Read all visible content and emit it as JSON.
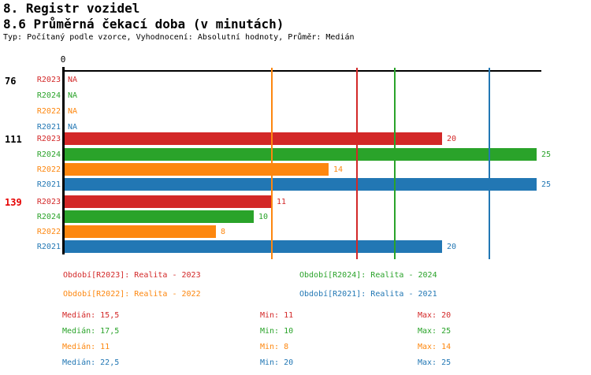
{
  "header": {
    "title1": "8. Registr vozidel",
    "title2": "8.6 Průměrná čekací doba (v minutách)",
    "subtitle": "Typ: Počítaný podle vzorce, Vyhodnocení: Absolutní hodnoty, Průměr: Medián"
  },
  "chart_data": {
    "type": "bar",
    "orientation": "horizontal",
    "title": "8.6 Průměrná čekací doba (v minutách)",
    "axis_zero_label": "0",
    "value_unit": "minuty",
    "na_text": "NA",
    "series_order": [
      "R2023",
      "R2024",
      "R2022",
      "R2021"
    ],
    "series_colors": {
      "R2023": "#d32828",
      "R2024": "#2aa32a",
      "R2022": "#fd870f",
      "R2021": "#2277b4"
    },
    "groups": [
      {
        "label": "76",
        "label_color": "#000000",
        "rows": [
          {
            "series": "R2023",
            "value": "NA"
          },
          {
            "series": "R2024",
            "value": "NA"
          },
          {
            "series": "R2022",
            "value": "NA"
          },
          {
            "series": "R2021",
            "value": "NA"
          }
        ]
      },
      {
        "label": "111",
        "label_color": "#000000",
        "rows": [
          {
            "series": "R2023",
            "value": 20
          },
          {
            "series": "R2024",
            "value": 25
          },
          {
            "series": "R2022",
            "value": 14
          },
          {
            "series": "R2021",
            "value": 25
          }
        ]
      },
      {
        "label": "139",
        "label_color": "#e60000",
        "rows": [
          {
            "series": "R2023",
            "value": 11
          },
          {
            "series": "R2024",
            "value": 10
          },
          {
            "series": "R2022",
            "value": 8
          },
          {
            "series": "R2021",
            "value": 20
          }
        ]
      }
    ],
    "median_lines": [
      {
        "series": "R2022",
        "value": 11,
        "color": "#fd870f"
      },
      {
        "series": "R2023",
        "value": 15.5,
        "color": "#d32828"
      },
      {
        "series": "R2024",
        "value": 17.5,
        "color": "#2aa32a"
      },
      {
        "series": "R2021",
        "value": 22.5,
        "color": "#2277b4"
      }
    ]
  },
  "legend": {
    "items": [
      {
        "text": "Období[R2023]: Realita - 2023",
        "color": "#d32828",
        "row": 0,
        "col": 0
      },
      {
        "text": "Období[R2024]: Realita - 2024",
        "color": "#2aa32a",
        "row": 0,
        "col": 1
      },
      {
        "text": "Období[R2022]: Realita - 2022",
        "color": "#fd870f",
        "row": 1,
        "col": 0
      },
      {
        "text": "Období[R2021]: Realita - 2021",
        "color": "#2277b4",
        "row": 1,
        "col": 1
      }
    ]
  },
  "stats": {
    "rows": [
      {
        "series": "R2023",
        "color": "#d32828",
        "median": "Medián: 15,5",
        "min": "Min: 11",
        "max": "Max: 20"
      },
      {
        "series": "R2024",
        "color": "#2aa32a",
        "median": "Medián: 17,5",
        "min": "Min: 10",
        "max": "Max: 25"
      },
      {
        "series": "R2022",
        "color": "#fd870f",
        "median": "Medián: 11",
        "min": "Min: 8",
        "max": "Max: 14"
      },
      {
        "series": "R2021",
        "color": "#2277b4",
        "median": "Medián: 22,5",
        "min": "Min: 20",
        "max": "Max: 25"
      }
    ]
  }
}
